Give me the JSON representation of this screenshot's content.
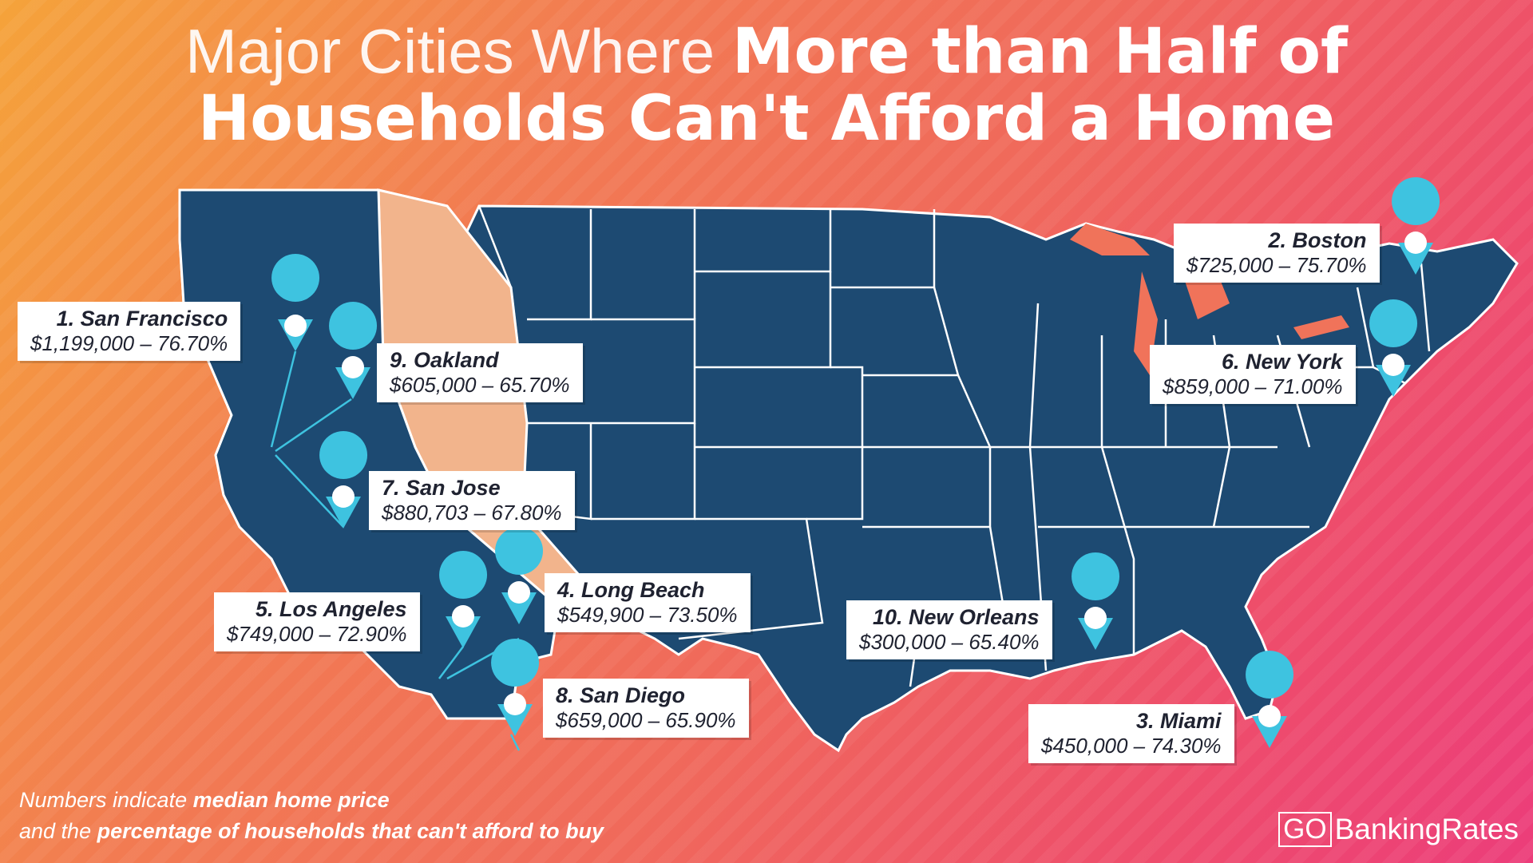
{
  "title": {
    "light": "Major Cities Where ",
    "bold_line1": "More than Half of",
    "line2": "Households Can't Afford a Home"
  },
  "cities": [
    {
      "rank_name": "1. San Francisco",
      "value": "$1,199,000 – 76.70%"
    },
    {
      "rank_name": "2. Boston",
      "value": "$725,000 – 75.70%"
    },
    {
      "rank_name": "3. Miami",
      "value": "$450,000 – 74.30%"
    },
    {
      "rank_name": "4. Long Beach",
      "value": "$549,900 – 73.50%"
    },
    {
      "rank_name": "5. Los Angeles",
      "value": "$749,000 – 72.90%"
    },
    {
      "rank_name": "6. New York",
      "value": "$859,000 – 71.00%"
    },
    {
      "rank_name": "7. San Jose",
      "value": "$880,703 – 67.80%"
    },
    {
      "rank_name": "8. San Diego",
      "value": "$659,000 – 65.90%"
    },
    {
      "rank_name": "9. Oakland",
      "value": "$605,000 – 65.70%"
    },
    {
      "rank_name": "10. New Orleans",
      "value": "$300,000 – 65.40%"
    }
  ],
  "footnote": {
    "l1_a": "Numbers indicate ",
    "l1_b": "median home price",
    "l2_a": "and the ",
    "l2_b": "percentage of households that can't afford to buy"
  },
  "brand": {
    "go": "GO",
    "name": "BankingRates"
  },
  "colors": {
    "map": "#1d4a72",
    "border": "#ffffff",
    "pin": "#3ec3e0",
    "highlight_state": "#f2b48c"
  }
}
